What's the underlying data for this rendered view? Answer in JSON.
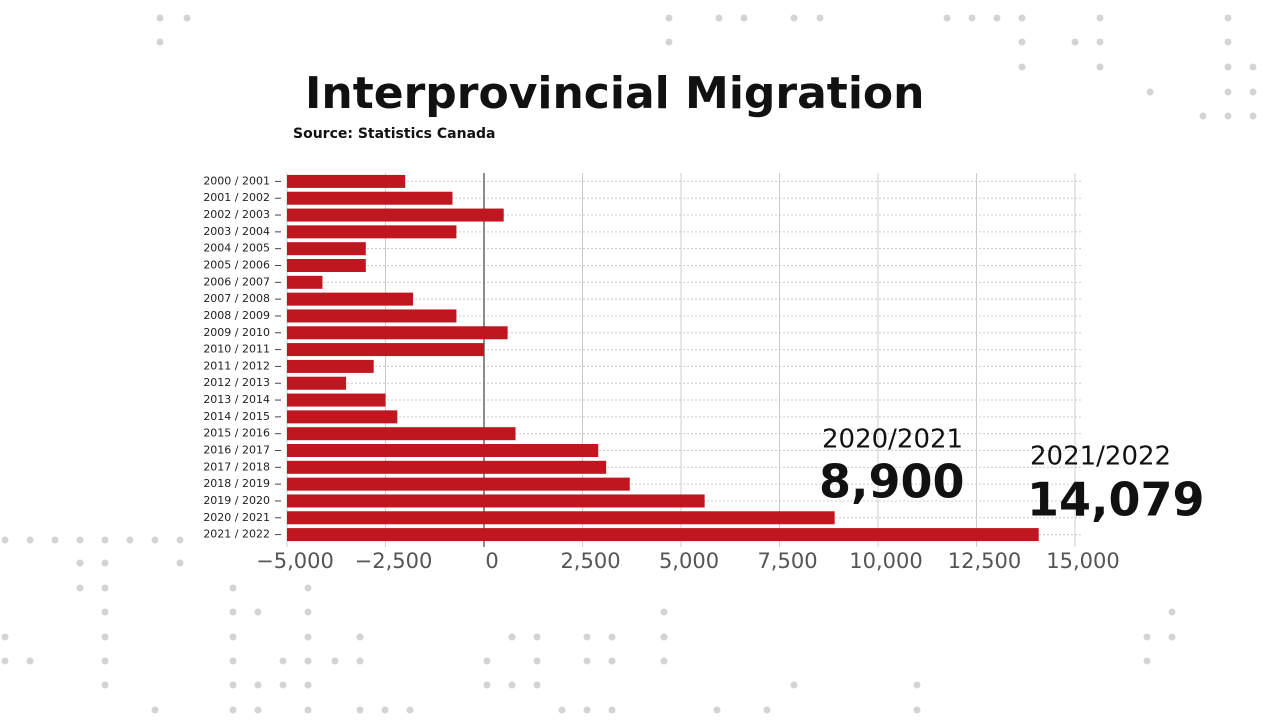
{
  "chart_data": {
    "type": "bar",
    "orientation": "horizontal",
    "title": "Interprovincial Migration",
    "subtitle": "Source: Statistics Canada",
    "categories": [
      "2000 / 2001",
      "2001 / 2002",
      "2002 / 2003",
      "2003 / 2004",
      "2004 / 2005",
      "2005 / 2006",
      "2006 / 2007",
      "2007 / 2008",
      "2008 / 2009",
      "2009 / 2010",
      "2010 / 2011",
      "2011 / 2012",
      "2012 / 2013",
      "2013 / 2014",
      "2014 / 2015",
      "2015 / 2016",
      "2016 / 2017",
      "2017 / 2018",
      "2018 / 2019",
      "2019 / 2020",
      "2020 / 2021",
      "2021 / 2022"
    ],
    "values": [
      -2000,
      -800,
      500,
      -700,
      -3000,
      -3000,
      -4100,
      -1800,
      -700,
      600,
      0,
      -2800,
      -3500,
      -2500,
      -2200,
      800,
      2900,
      3100,
      3700,
      5600,
      8900,
      14079
    ],
    "color": "#c0161f",
    "xlim": [
      -5000,
      15000
    ],
    "xticks": [
      {
        "value": -5000,
        "label": "−5,000"
      },
      {
        "value": -2500,
        "label": "−2,500"
      },
      0,
      {
        "value": 2500,
        "label": "2,500"
      },
      {
        "value": 5000,
        "label": "5,000"
      },
      {
        "value": 7500,
        "label": "7,500"
      },
      {
        "value": 10000,
        "label": "10,000"
      },
      {
        "value": 12500,
        "label": "12,500"
      },
      {
        "value": 15000,
        "label": "15,000"
      }
    ],
    "grid": true,
    "annotations": [
      {
        "title": "2020/2021",
        "text": "8,900"
      },
      {
        "title": "2021/2022",
        "text": "14,079"
      }
    ]
  }
}
